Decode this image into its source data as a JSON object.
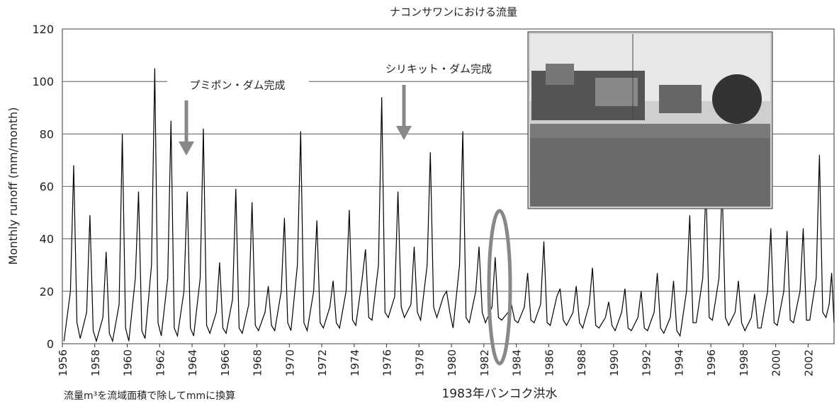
{
  "chart_data": {
    "type": "line",
    "title": "ナコンサワンにおける流量",
    "y_label": "Monthly runoff (mm/month)",
    "annotations": [
      "プミポン・ダム完成",
      "シリキット・ダム完成",
      "1983年バンコク洪水",
      "流量m³を流域面積で除してmmに換算"
    ],
    "color": "#000000",
    "grid": true,
    "xlim": [
      1956,
      2003.6
    ],
    "ylim": [
      0,
      120
    ],
    "yticks": [
      0,
      20,
      40,
      60,
      80,
      100,
      120
    ],
    "xticks": [
      1956,
      1958,
      1960,
      1962,
      1964,
      1966,
      1968,
      1970,
      1972,
      1974,
      1976,
      1978,
      1980,
      1982,
      1984,
      1986,
      1988,
      1990,
      1992,
      1994,
      1996,
      1998,
      2000,
      2002
    ],
    "x": [
      1956.1,
      1956.5,
      1956.7,
      1956.9,
      1957.1,
      1957.5,
      1957.7,
      1957.9,
      1958.1,
      1958.5,
      1958.7,
      1958.9,
      1959.1,
      1959.5,
      1959.7,
      1959.9,
      1960.1,
      1960.5,
      1960.7,
      1960.9,
      1961.1,
      1961.5,
      1961.7,
      1961.9,
      1962.1,
      1962.5,
      1962.7,
      1962.9,
      1963.1,
      1963.5,
      1963.7,
      1963.9,
      1964.1,
      1964.5,
      1964.7,
      1964.9,
      1965.1,
      1965.5,
      1965.7,
      1965.9,
      1966.1,
      1966.5,
      1966.7,
      1966.9,
      1967.1,
      1967.5,
      1967.7,
      1967.9,
      1968.1,
      1968.5,
      1968.7,
      1968.9,
      1969.1,
      1969.5,
      1969.7,
      1969.9,
      1970.1,
      1970.5,
      1970.7,
      1970.9,
      1971.1,
      1971.5,
      1971.7,
      1971.9,
      1972.1,
      1972.5,
      1972.7,
      1972.9,
      1973.1,
      1973.5,
      1973.7,
      1973.9,
      1974.1,
      1974.5,
      1974.7,
      1974.9,
      1975.1,
      1975.5,
      1975.7,
      1975.9,
      1976.1,
      1976.5,
      1976.7,
      1976.9,
      1977.1,
      1977.5,
      1977.7,
      1977.9,
      1978.1,
      1978.5,
      1978.7,
      1978.9,
      1979.1,
      1979.5,
      1979.7,
      1979.9,
      1980.1,
      1980.5,
      1980.7,
      1980.9,
      1981.1,
      1981.5,
      1981.7,
      1981.9,
      1982.1,
      1982.5,
      1982.7,
      1982.9,
      1983.1,
      1983.5,
      1983.7,
      1983.9,
      1984.1,
      1984.5,
      1984.7,
      1984.9,
      1985.1,
      1985.5,
      1985.7,
      1985.9,
      1986.1,
      1986.5,
      1986.7,
      1986.9,
      1987.1,
      1987.5,
      1987.7,
      1987.9,
      1988.1,
      1988.5,
      1988.7,
      1988.9,
      1989.1,
      1989.5,
      1989.7,
      1989.9,
      1990.1,
      1990.5,
      1990.7,
      1990.9,
      1991.1,
      1991.5,
      1991.7,
      1991.9,
      1992.1,
      1992.5,
      1992.7,
      1992.9,
      1993.1,
      1993.5,
      1993.7,
      1993.9,
      1994.1,
      1994.5,
      1994.7,
      1994.9,
      1995.1,
      1995.5,
      1995.7,
      1995.9,
      1996.1,
      1996.5,
      1996.7,
      1996.9,
      1997.1,
      1997.5,
      1997.7,
      1997.9,
      1998.1,
      1998.5,
      1998.7,
      1998.9,
      1999.1,
      1999.5,
      1999.7,
      1999.9,
      2000.1,
      2000.5,
      2000.7,
      2000.9,
      2001.1,
      2001.5,
      2001.7,
      2001.9,
      2002.1,
      2002.5,
      2002.7,
      2002.9,
      2003.1,
      2003.3,
      2003.45,
      2003.6
    ],
    "values": [
      1,
      20,
      68,
      8,
      2,
      12,
      49,
      5,
      1,
      10,
      35,
      4,
      1,
      15,
      80,
      6,
      1,
      25,
      58,
      5,
      2,
      30,
      105,
      8,
      3,
      25,
      85,
      6,
      3,
      20,
      58,
      6,
      3,
      25,
      82,
      7,
      4,
      12,
      31,
      6,
      4,
      17,
      59,
      6,
      4,
      15,
      54,
      7,
      5,
      12,
      22,
      7,
      5,
      20,
      48,
      8,
      5,
      30,
      81,
      8,
      5,
      20,
      47,
      8,
      6,
      14,
      24,
      8,
      6,
      20,
      51,
      9,
      7,
      25,
      36,
      10,
      9,
      30,
      94,
      12,
      10,
      18,
      58,
      14,
      10,
      15,
      37,
      12,
      9,
      30,
      73,
      14,
      10,
      18,
      20,
      12,
      6,
      30,
      81,
      10,
      8,
      20,
      37,
      12,
      8,
      14,
      33,
      10,
      9,
      12,
      15,
      9,
      8,
      14,
      27,
      9,
      8,
      15,
      39,
      8,
      7,
      18,
      21,
      9,
      7,
      12,
      22,
      8,
      6,
      15,
      29,
      7,
      6,
      10,
      16,
      7,
      5,
      12,
      21,
      6,
      5,
      10,
      20,
      6,
      5,
      12,
      27,
      6,
      4,
      10,
      24,
      5,
      3,
      20,
      49,
      8,
      8,
      25,
      60,
      10,
      9,
      25,
      60,
      10,
      7,
      12,
      24,
      8,
      5,
      10,
      19,
      6,
      6,
      20,
      44,
      8,
      7,
      20,
      43,
      9,
      8,
      20,
      44,
      9,
      9,
      25,
      72,
      12,
      10,
      15,
      27,
      8
    ]
  }
}
